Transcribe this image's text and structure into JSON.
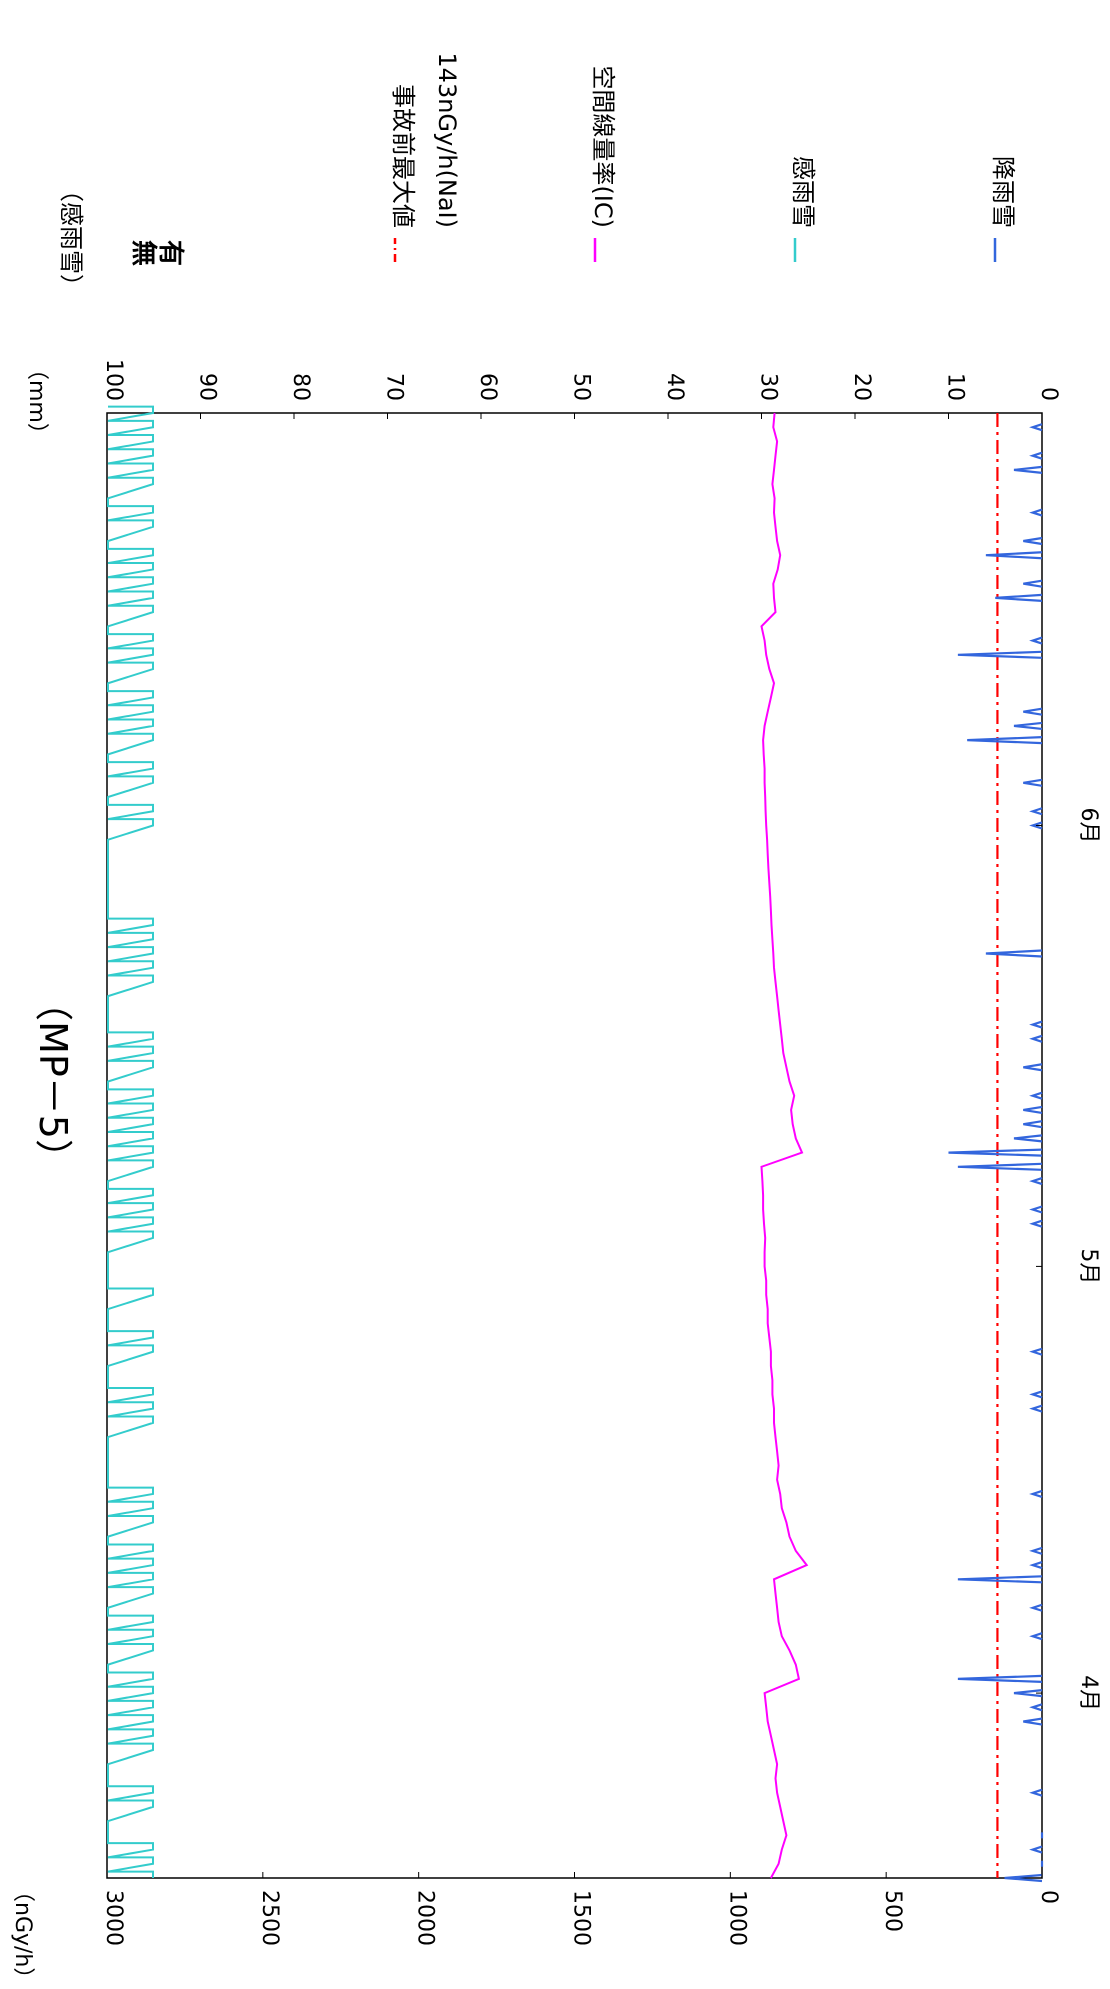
{
  "chart_data": {
    "type": "line",
    "title": "（MP－5）",
    "rotated": "90deg-clockwise",
    "x_axis": {
      "type": "time",
      "range": [
        "03-19",
        "06-30"
      ],
      "tick_labels": [
        {
          "date": "04-01",
          "label": "4月"
        },
        {
          "date": "05-01",
          "label": "5月"
        },
        {
          "date": "06-01",
          "label": "6月"
        }
      ]
    },
    "left_axis": {
      "unit_label": "（nGy/h）",
      "range": [
        0,
        3000
      ],
      "ticks": [
        "0",
        "500",
        "1000",
        "1500",
        "2000",
        "2500",
        "3000"
      ]
    },
    "right_axis": {
      "unit_label": "（mm）",
      "range": [
        0,
        100
      ],
      "ticks": [
        "0",
        "10",
        "20",
        "30",
        "40",
        "50",
        "60",
        "70",
        "80",
        "90",
        "100"
      ]
    },
    "sense_axis": {
      "title": "（感雨雪）",
      "labels": [
        "無",
        "有"
      ]
    },
    "legend": {
      "placement": "right",
      "entries": [
        {
          "key": "pre_accident",
          "label": "事故前最大値",
          "label2": "143nGy/h(NaI)",
          "color": "#ff0000",
          "style": "dash-dot"
        },
        {
          "key": "air_dose",
          "label": "空間線量率(IC)",
          "color": "#ff00ff",
          "style": "solid"
        },
        {
          "key": "rain_sense",
          "label": "感雨雪",
          "color": "#33cccc",
          "style": "solid"
        },
        {
          "key": "rainfall",
          "label": "降雨雪",
          "color": "#3366dd",
          "style": "solid"
        }
      ]
    },
    "series": [
      {
        "name": "事故前最大値 143nGy/h(NaI)",
        "axis": "left",
        "color": "#ff0000",
        "constant": 143
      },
      {
        "name": "空間線量率(IC)",
        "axis": "left",
        "color": "#ff00ff",
        "points": [
          [
            "03-19",
            870
          ],
          [
            "03-20",
            845
          ],
          [
            "03-21",
            835
          ],
          [
            "03-22",
            820
          ],
          [
            "03-23",
            830
          ],
          [
            "03-24",
            840
          ],
          [
            "03-25",
            850
          ],
          [
            "03-26",
            855
          ],
          [
            "03-27",
            850
          ],
          [
            "03-28",
            860
          ],
          [
            "03-29",
            870
          ],
          [
            "03-30",
            880
          ],
          [
            "03-31",
            885
          ],
          [
            "04-01",
            890
          ],
          [
            "04-02",
            780
          ],
          [
            "04-03",
            790
          ],
          [
            "04-04",
            810
          ],
          [
            "04-05",
            835
          ],
          [
            "04-06",
            845
          ],
          [
            "04-07",
            850
          ],
          [
            "04-08",
            855
          ],
          [
            "04-09",
            860
          ],
          [
            "04-10",
            755
          ],
          [
            "04-11",
            790
          ],
          [
            "04-12",
            810
          ],
          [
            "04-13",
            820
          ],
          [
            "04-14",
            835
          ],
          [
            "04-15",
            840
          ],
          [
            "04-16",
            850
          ],
          [
            "04-17",
            845
          ],
          [
            "04-18",
            850
          ],
          [
            "04-19",
            855
          ],
          [
            "04-20",
            860
          ],
          [
            "04-21",
            860
          ],
          [
            "04-22",
            865
          ],
          [
            "04-23",
            865
          ],
          [
            "04-24",
            870
          ],
          [
            "04-25",
            870
          ],
          [
            "04-26",
            875
          ],
          [
            "04-27",
            880
          ],
          [
            "04-28",
            880
          ],
          [
            "04-29",
            885
          ],
          [
            "04-30",
            885
          ],
          [
            "05-01",
            890
          ],
          [
            "05-02",
            890
          ],
          [
            "05-03",
            888
          ],
          [
            "05-04",
            892
          ],
          [
            "05-05",
            895
          ],
          [
            "05-06",
            895
          ],
          [
            "05-07",
            897
          ],
          [
            "05-08",
            900
          ],
          [
            "05-09",
            770
          ],
          [
            "05-10",
            790
          ],
          [
            "05-11",
            800
          ],
          [
            "05-12",
            805
          ],
          [
            "05-13",
            795
          ],
          [
            "05-14",
            810
          ],
          [
            "05-15",
            820
          ],
          [
            "05-16",
            830
          ],
          [
            "05-17",
            835
          ],
          [
            "05-18",
            840
          ],
          [
            "05-19",
            845
          ],
          [
            "05-20",
            850
          ],
          [
            "05-21",
            855
          ],
          [
            "05-22",
            860
          ],
          [
            "05-23",
            862
          ],
          [
            "05-24",
            865
          ],
          [
            "05-25",
            868
          ],
          [
            "05-26",
            870
          ],
          [
            "05-27",
            872
          ],
          [
            "05-28",
            875
          ],
          [
            "05-29",
            878
          ],
          [
            "05-30",
            880
          ],
          [
            "05-31",
            882
          ],
          [
            "06-01",
            885
          ],
          [
            "06-02",
            887
          ],
          [
            "06-03",
            888
          ],
          [
            "06-04",
            890
          ],
          [
            "06-05",
            890
          ],
          [
            "06-06",
            893
          ],
          [
            "06-07",
            895
          ],
          [
            "06-08",
            890
          ],
          [
            "06-09",
            880
          ],
          [
            "06-10",
            870
          ],
          [
            "06-11",
            860
          ],
          [
            "06-12",
            875
          ],
          [
            "06-13",
            885
          ],
          [
            "06-14",
            890
          ],
          [
            "06-15",
            900
          ],
          [
            "06-16",
            855
          ],
          [
            "06-17",
            860
          ],
          [
            "06-18",
            862
          ],
          [
            "06-19",
            848
          ],
          [
            "06-20",
            840
          ],
          [
            "06-21",
            850
          ],
          [
            "06-22",
            855
          ],
          [
            "06-23",
            860
          ],
          [
            "06-24",
            858
          ],
          [
            "06-25",
            865
          ],
          [
            "06-26",
            860
          ],
          [
            "06-27",
            855
          ],
          [
            "06-28",
            850
          ],
          [
            "06-29",
            862
          ],
          [
            "06-30",
            858
          ]
        ]
      },
      {
        "name": "降雨雪",
        "axis": "right",
        "color": "#3366dd",
        "unit": "mm",
        "points": [
          [
            "03-19",
            4
          ],
          [
            "03-20",
            0
          ],
          [
            "03-21",
            1
          ],
          [
            "03-22",
            0
          ],
          [
            "03-25",
            1
          ],
          [
            "03-30",
            2
          ],
          [
            "03-31",
            1
          ],
          [
            "04-01",
            3
          ],
          [
            "04-02",
            9
          ],
          [
            "04-05",
            1
          ],
          [
            "04-07",
            1
          ],
          [
            "04-09",
            9
          ],
          [
            "04-10",
            1
          ],
          [
            "04-11",
            1
          ],
          [
            "04-15",
            1
          ],
          [
            "04-21",
            1
          ],
          [
            "04-22",
            1
          ],
          [
            "04-25",
            1
          ],
          [
            "05-04",
            1
          ],
          [
            "05-05",
            1
          ],
          [
            "05-07",
            1
          ],
          [
            "05-08",
            9
          ],
          [
            "05-09",
            10
          ],
          [
            "05-10",
            3
          ],
          [
            "05-11",
            2
          ],
          [
            "05-12",
            2
          ],
          [
            "05-13",
            1
          ],
          [
            "05-15",
            2
          ],
          [
            "05-17",
            1
          ],
          [
            "05-18",
            1
          ],
          [
            "05-23",
            6
          ],
          [
            "06-01",
            1
          ],
          [
            "06-02",
            1
          ],
          [
            "06-04",
            2
          ],
          [
            "06-07",
            8
          ],
          [
            "06-08",
            3
          ],
          [
            "06-09",
            2
          ],
          [
            "06-13",
            9
          ],
          [
            "06-14",
            1
          ],
          [
            "06-17",
            5
          ],
          [
            "06-18",
            2
          ],
          [
            "06-20",
            6
          ],
          [
            "06-21",
            2
          ],
          [
            "06-23",
            1
          ],
          [
            "06-26",
            3
          ],
          [
            "06-27",
            1
          ],
          [
            "06-29",
            1
          ]
        ]
      },
      {
        "name": "感雨雪",
        "axis": "sense",
        "color": "#33cccc",
        "values": [
          "無",
          "有"
        ],
        "on_days": [
          "03-19",
          "03-20",
          "03-21",
          "03-24",
          "03-25",
          "03-28",
          "03-29",
          "03-30",
          "03-31",
          "04-01",
          "04-02",
          "04-04",
          "04-05",
          "04-06",
          "04-08",
          "04-09",
          "04-10",
          "04-11",
          "04-13",
          "04-14",
          "04-15",
          "04-20",
          "04-21",
          "04-22",
          "04-25",
          "04-26",
          "04-29",
          "05-03",
          "05-04",
          "05-05",
          "05-06",
          "05-08",
          "05-09",
          "05-10",
          "05-11",
          "05-12",
          "05-13",
          "05-15",
          "05-16",
          "05-17",
          "05-21",
          "05-22",
          "05-23",
          "05-24",
          "05-25",
          "06-01",
          "06-02",
          "06-04",
          "06-05",
          "06-07",
          "06-08",
          "06-09",
          "06-10",
          "06-12",
          "06-13",
          "06-14",
          "06-16",
          "06-17",
          "06-18",
          "06-19",
          "06-20",
          "06-22",
          "06-23",
          "06-25",
          "06-26",
          "06-27",
          "06-28",
          "06-29",
          "06-30"
        ]
      }
    ]
  }
}
